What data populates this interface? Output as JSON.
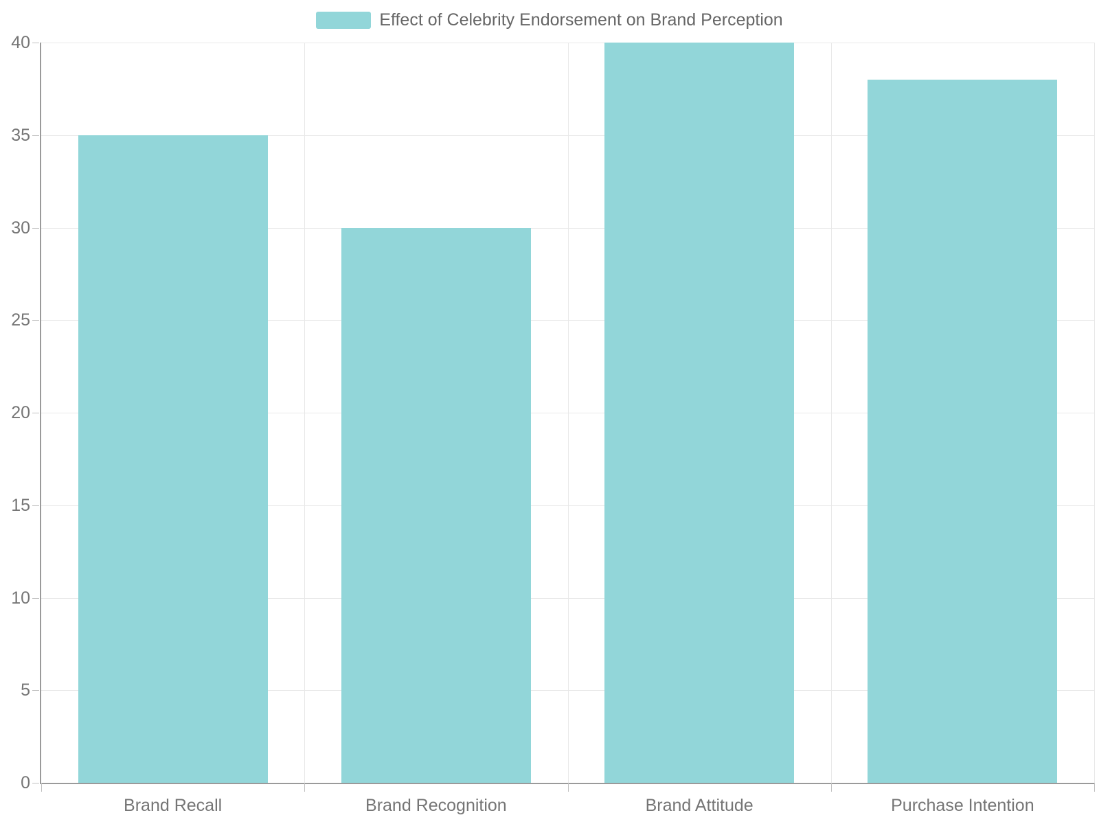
{
  "chart_data": {
    "type": "bar",
    "title": "Effect of Celebrity Endorsement on Brand Perception",
    "legend": {
      "position": "top",
      "entries": [
        "Effect of Celebrity Endorsement on Brand Perception"
      ]
    },
    "categories": [
      "Brand Recall",
      "Brand Recognition",
      "Brand Attitude",
      "Purchase Intention"
    ],
    "values": [
      35,
      30,
      40,
      38
    ],
    "xlabel": "",
    "ylabel": "",
    "ylim": [
      0,
      40
    ],
    "yticks": [
      0,
      5,
      10,
      15,
      20,
      25,
      30,
      35,
      40
    ],
    "grid": true,
    "colors": {
      "bar": "#92d6d9",
      "axis_line": "#9a9a9a",
      "grid_line": "#e8e8e8",
      "tick_mark": "#c0c0c0",
      "tick_text": "#757575",
      "legend_text": "#666666",
      "background": "#ffffff"
    }
  }
}
